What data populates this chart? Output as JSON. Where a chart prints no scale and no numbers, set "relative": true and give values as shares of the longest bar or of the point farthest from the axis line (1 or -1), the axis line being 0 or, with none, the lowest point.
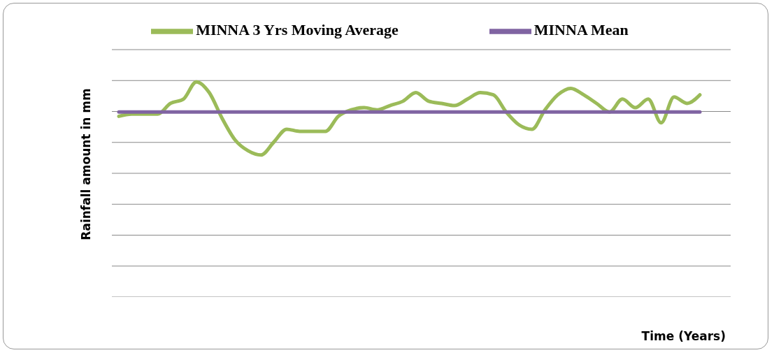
{
  "chart_data": {
    "type": "line",
    "relative": true,
    "ylabel": "Rainfall amount in mm",
    "xlabel": "Time (Years)",
    "legend": "top",
    "grid": "y",
    "marker": "none",
    "categories": [
      null,
      null,
      null,
      null,
      null,
      null,
      null,
      null,
      null,
      null,
      null,
      null,
      null,
      null,
      null,
      null,
      null,
      null,
      null,
      null,
      null,
      null,
      null,
      null,
      null,
      null,
      null,
      null,
      null,
      null,
      null,
      null,
      null,
      null,
      null,
      null,
      null,
      null,
      null,
      null,
      null,
      null,
      null,
      null,
      null,
      null
    ],
    "series": [
      {
        "name": "MINNA 3 Yrs Moving Average",
        "color": "#9bbb59",
        "values": [
          0.84,
          0.85,
          0.85,
          0.85,
          0.9,
          0.92,
          1,
          0.95,
          0.83,
          0.73,
          0.68,
          0.66,
          0.72,
          0.78,
          0.77,
          0.77,
          0.77,
          0.84,
          0.87,
          0.88,
          0.87,
          0.89,
          0.91,
          0.95,
          0.91,
          0.9,
          0.89,
          0.92,
          0.95,
          0.94,
          0.86,
          0.8,
          0.78,
          0.87,
          0.94,
          0.97,
          0.94,
          0.9,
          0.86,
          0.92,
          0.88,
          0.92,
          0.81,
          0.93,
          0.9,
          0.94
        ]
      },
      {
        "name": "MINNA Mean",
        "color": "#8064a2",
        "values": [
          0.86,
          0.86,
          0.86,
          0.86,
          0.86,
          0.86,
          0.86,
          0.86,
          0.86,
          0.86,
          0.86,
          0.86,
          0.86,
          0.86,
          0.86,
          0.86,
          0.86,
          0.86,
          0.86,
          0.86,
          0.86,
          0.86,
          0.86,
          0.86,
          0.86,
          0.86,
          0.86,
          0.86,
          0.86,
          0.86,
          0.86,
          0.86,
          0.86,
          0.86,
          0.86,
          0.86,
          0.86,
          0.86,
          0.86,
          0.86,
          0.86,
          0.86,
          0.86,
          0.86,
          0.86,
          0.86
        ]
      }
    ]
  }
}
